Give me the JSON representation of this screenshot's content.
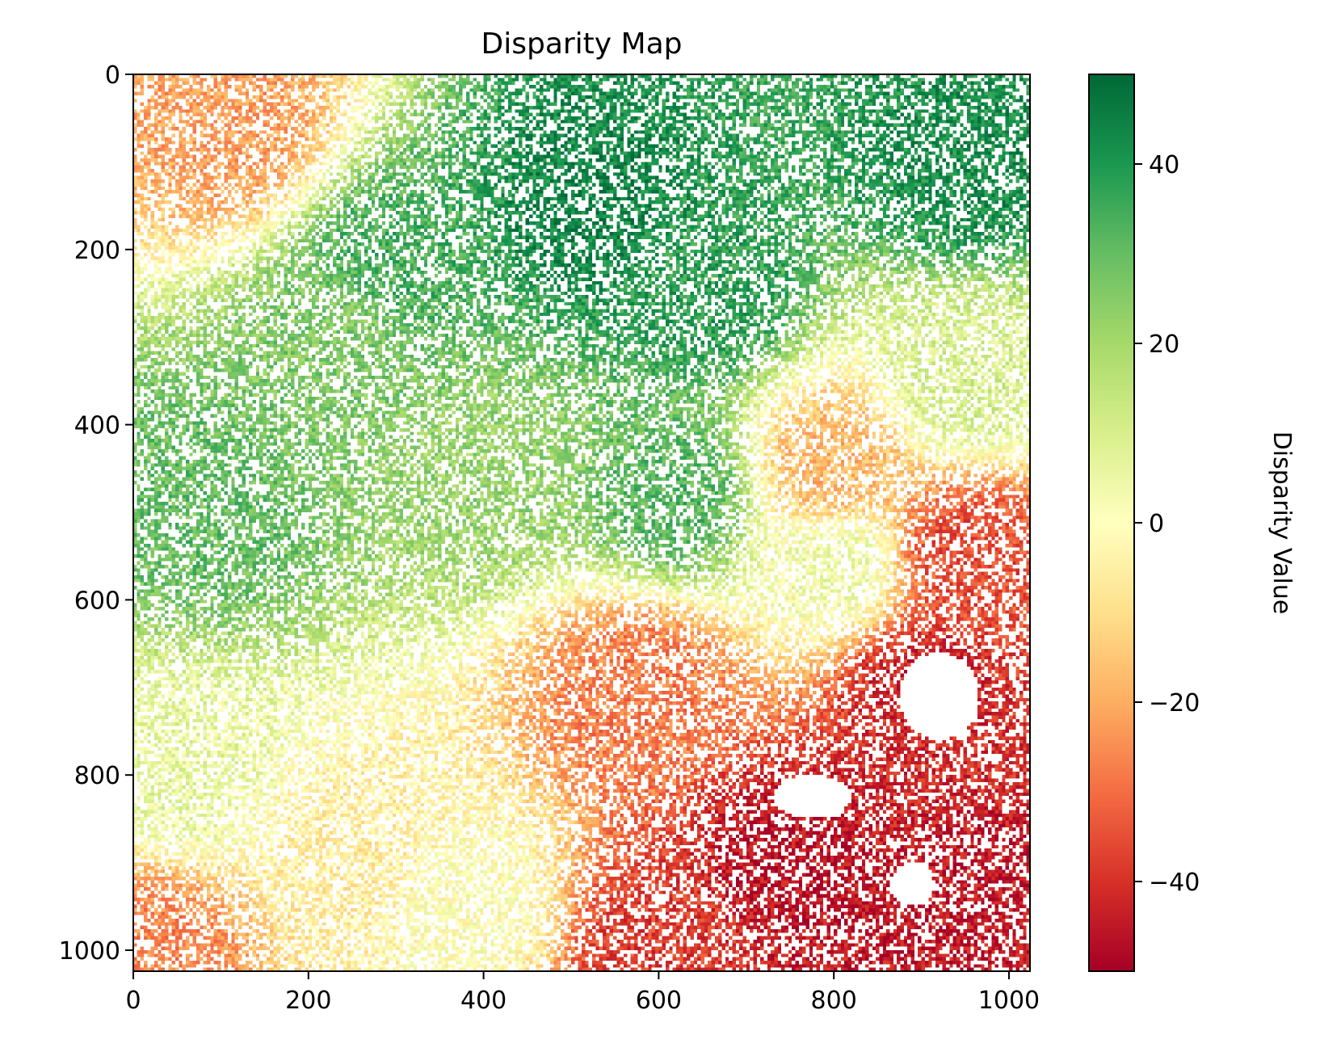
{
  "chart_data": {
    "type": "heatmap",
    "title": "Disparity Map",
    "xlabel": "",
    "ylabel": "",
    "xlim": [
      0,
      1024
    ],
    "ylim": [
      1024,
      0
    ],
    "y_axis_inverted": true,
    "x_ticks": [
      0,
      200,
      400,
      600,
      800,
      1000
    ],
    "y_ticks": [
      0,
      200,
      400,
      600,
      800,
      1000
    ],
    "colormap": "RdYlGn",
    "colormap_stops": [
      "#a50026",
      "#d73027",
      "#f46d43",
      "#fdae61",
      "#fee08b",
      "#ffffbf",
      "#d9ef8b",
      "#a6d96a",
      "#66bd63",
      "#1a9850",
      "#006837"
    ],
    "colorbar": {
      "label": "Disparity Value",
      "range": [
        -50,
        50
      ],
      "ticks": [
        -40,
        -20,
        0,
        20,
        40
      ],
      "tick_labels": [
        "−40",
        "−20",
        "0",
        "20",
        "40"
      ]
    },
    "invalid_pixels": "white (NaN)",
    "regions": [
      {
        "x": 110,
        "y": 60,
        "value": -22
      },
      {
        "x": 250,
        "y": 300,
        "value": 26
      },
      {
        "x": 300,
        "y": 220,
        "value": 34
      },
      {
        "x": 520,
        "y": 150,
        "value": 44
      },
      {
        "x": 650,
        "y": 250,
        "value": 38
      },
      {
        "x": 950,
        "y": 100,
        "value": 42
      },
      {
        "x": 80,
        "y": 500,
        "value": 30
      },
      {
        "x": 400,
        "y": 450,
        "value": 22
      },
      {
        "x": 620,
        "y": 480,
        "value": 32
      },
      {
        "x": 800,
        "y": 560,
        "value": 4
      },
      {
        "x": 950,
        "y": 350,
        "value": 10
      },
      {
        "x": 50,
        "y": 800,
        "value": 6
      },
      {
        "x": 250,
        "y": 900,
        "value": -6
      },
      {
        "x": 380,
        "y": 950,
        "value": 0
      },
      {
        "x": 580,
        "y": 700,
        "value": -28
      },
      {
        "x": 800,
        "y": 450,
        "value": -18
      },
      {
        "x": 950,
        "y": 550,
        "value": -35
      },
      {
        "x": 900,
        "y": 700,
        "value": -42
      },
      {
        "x": 750,
        "y": 900,
        "value": -46
      },
      {
        "x": 950,
        "y": 950,
        "value": -45
      },
      {
        "x": 20,
        "y": 1000,
        "value": -26
      },
      {
        "x": 600,
        "y": 1000,
        "value": -38
      }
    ],
    "holes": [
      {
        "x": 920,
        "y": 710,
        "rx": 45,
        "ry": 50
      },
      {
        "x": 775,
        "y": 825,
        "rx": 45,
        "ry": 25
      },
      {
        "x": 890,
        "y": 925,
        "rx": 25,
        "ry": 25
      }
    ]
  }
}
